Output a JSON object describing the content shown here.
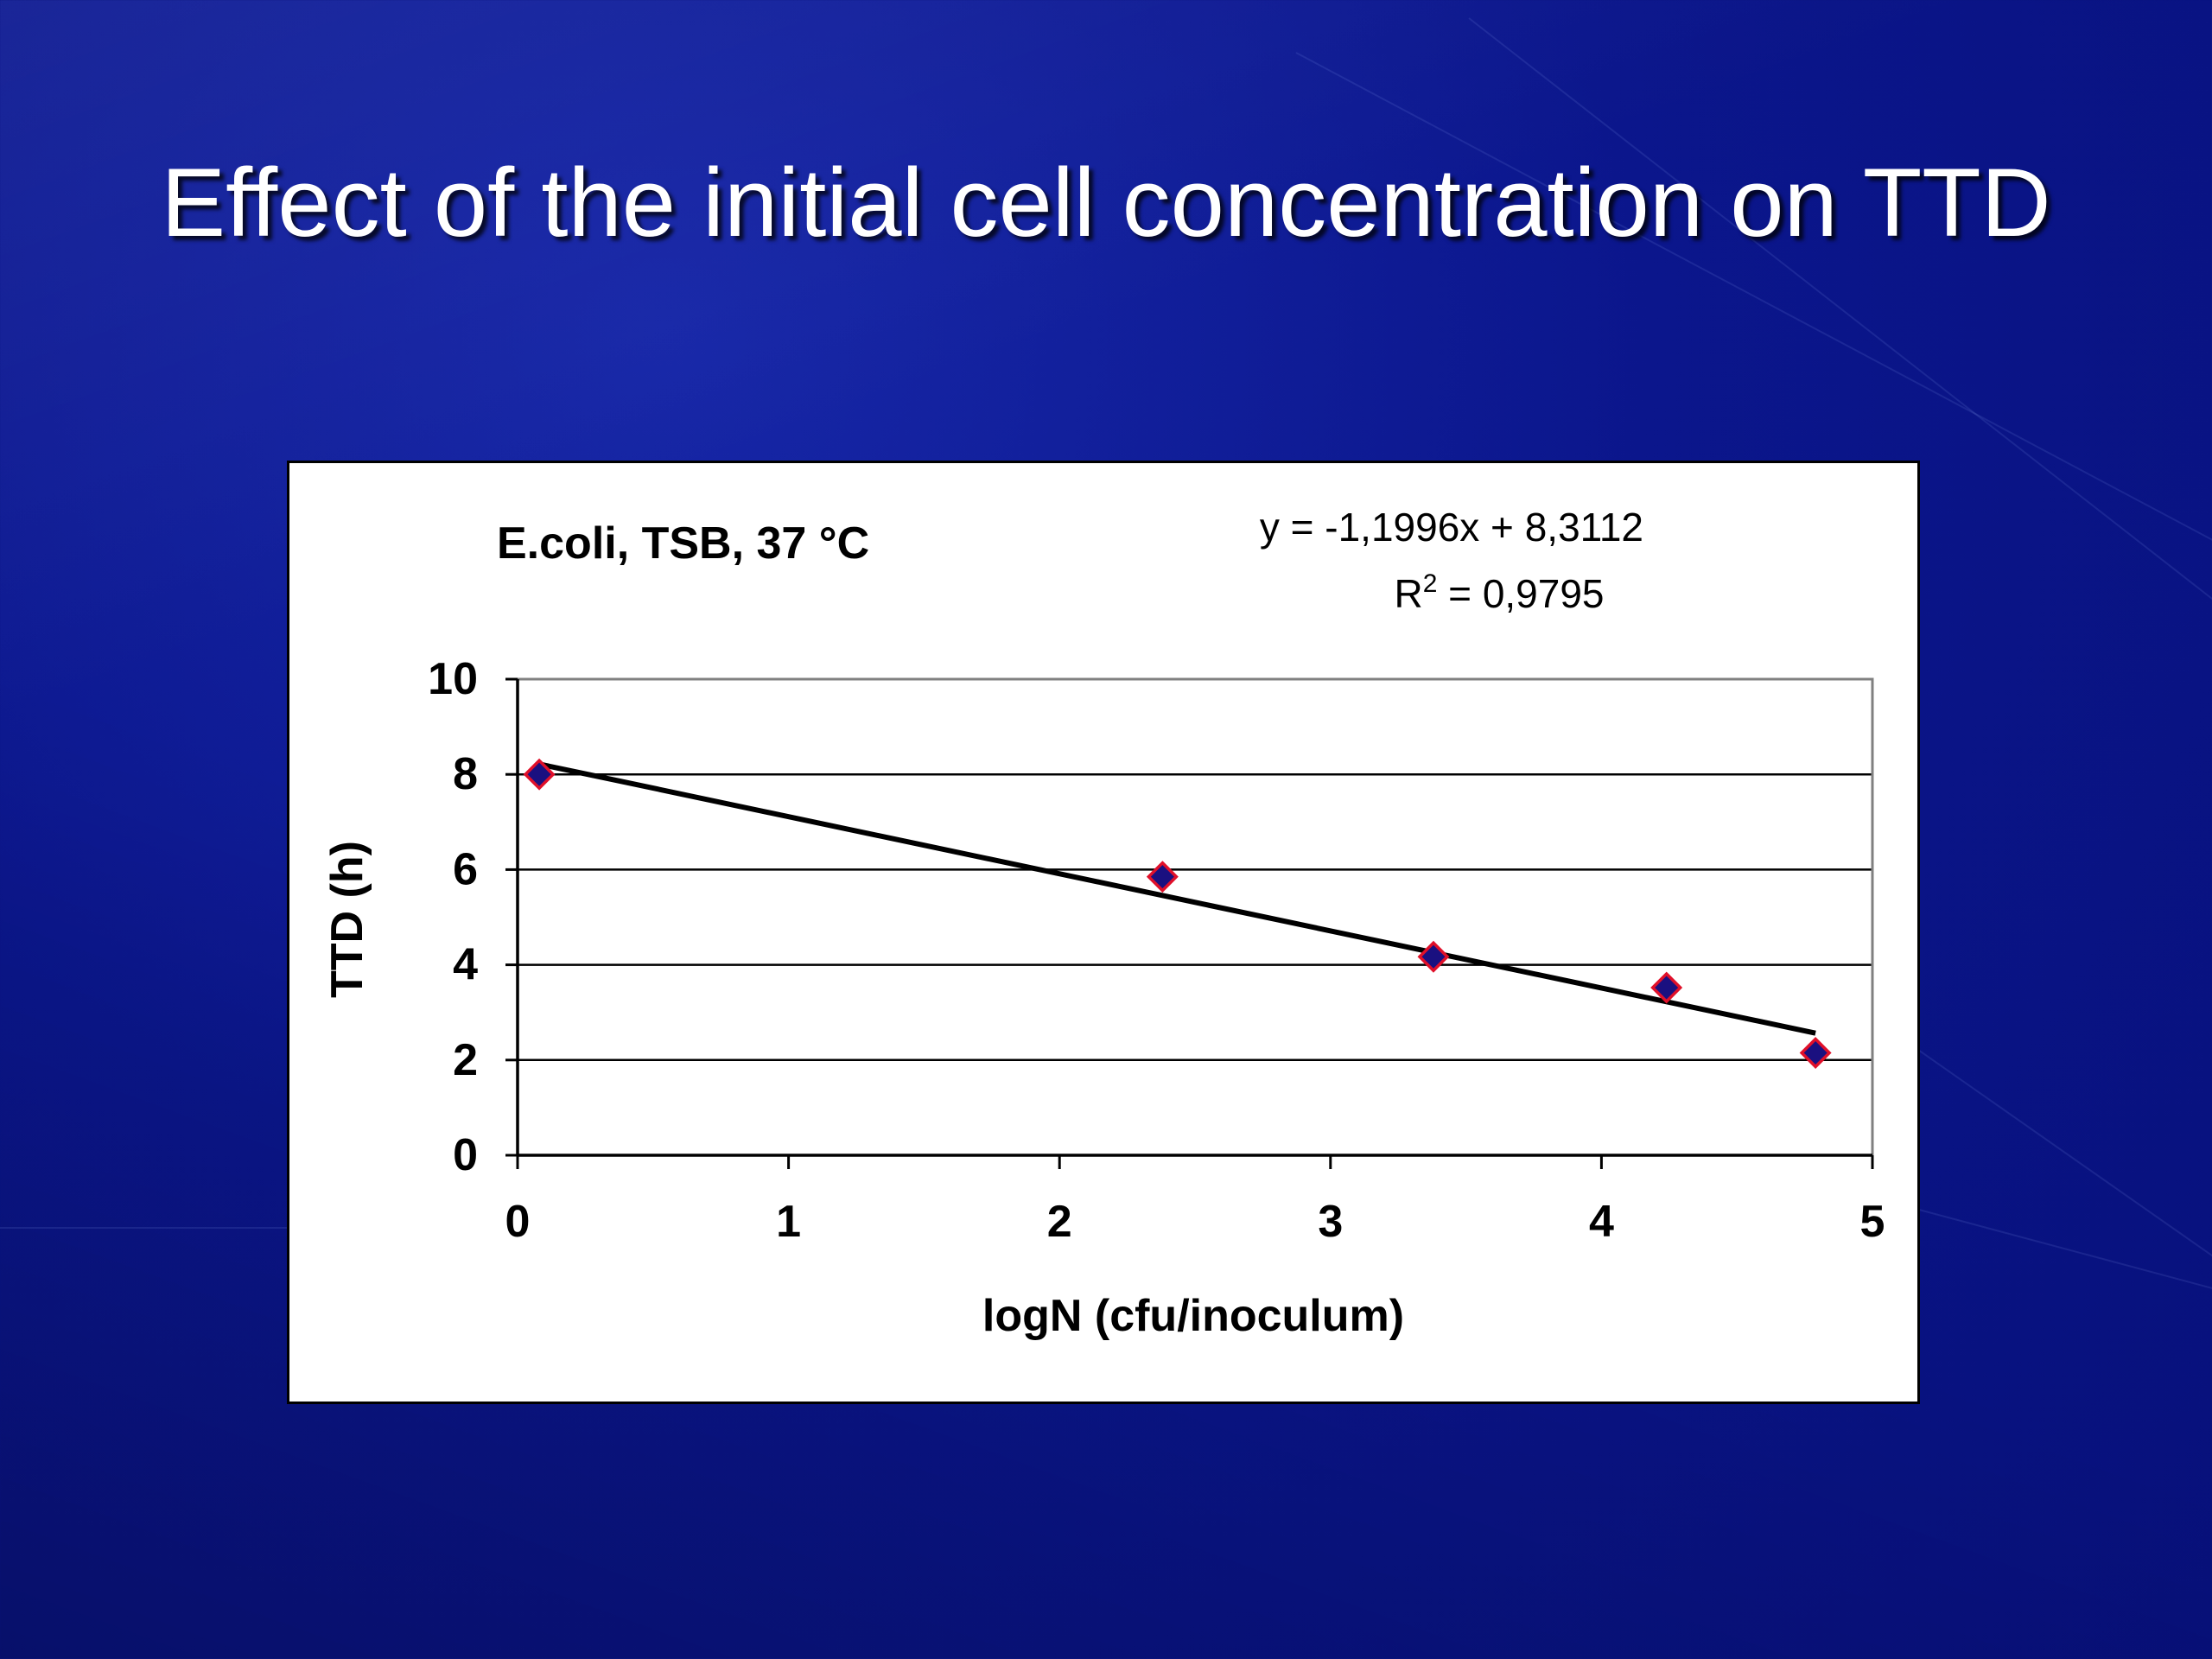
{
  "slide": {
    "title": "Effect of the initial cell concentration on TTD"
  },
  "chart_data": {
    "type": "scatter",
    "title": "E.coli, TSB,  37 °C",
    "xlabel": "logN (cfu/inoculum)",
    "ylabel": "TTD (h)",
    "xlim": [
      0,
      5
    ],
    "ylim": [
      0,
      10
    ],
    "x_ticks": [
      "0",
      "1",
      "2",
      "3",
      "4",
      "5"
    ],
    "y_ticks": [
      "0",
      "2",
      "4",
      "6",
      "8",
      "10"
    ],
    "grid": "horizontal",
    "series": [
      {
        "points": [
          {
            "x": 0.08,
            "y": 8.0
          },
          {
            "x": 2.38,
            "y": 5.85
          },
          {
            "x": 3.38,
            "y": 4.17
          },
          {
            "x": 4.24,
            "y": 3.52
          },
          {
            "x": 4.79,
            "y": 2.15
          }
        ],
        "marker": "diamond",
        "fill_color": "#1a1080",
        "edge_color": "#e0102a"
      }
    ],
    "trendline": {
      "slope": -1.1996,
      "intercept": 8.3112,
      "x_range": [
        0.08,
        4.79
      ],
      "equation": "y = -1,1996x + 8,3112",
      "r2_prefix": "R",
      "r2_sup": "2",
      "r2_value": " = 0,9795",
      "color": "#000000"
    }
  }
}
